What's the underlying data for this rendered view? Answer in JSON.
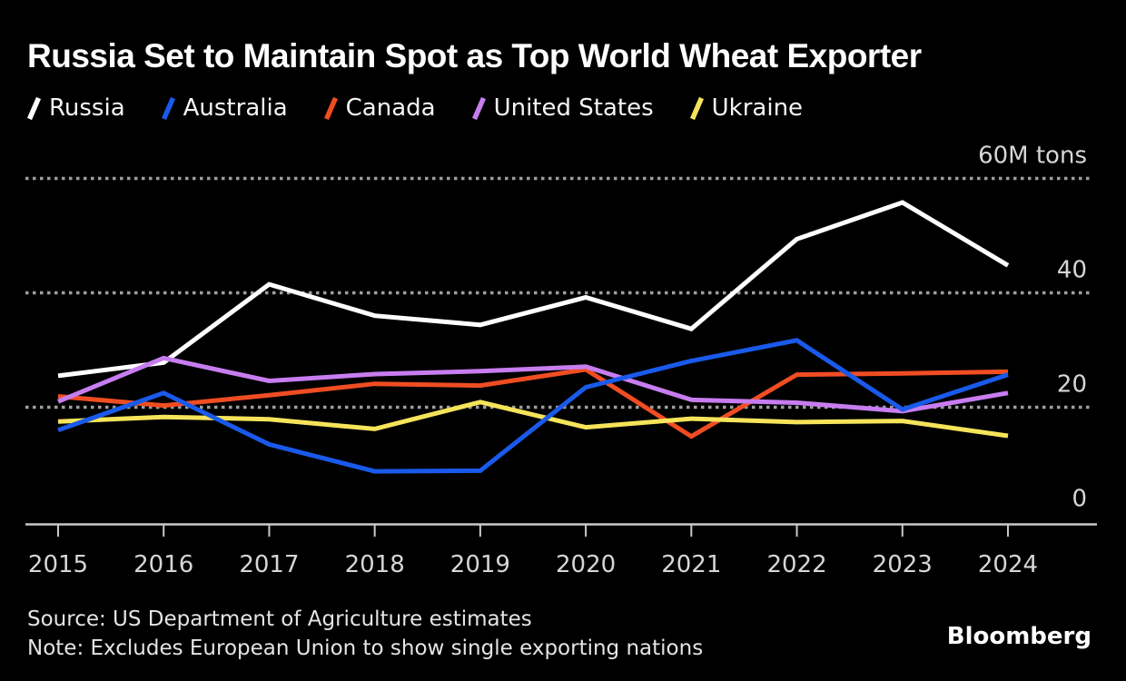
{
  "header": {
    "title": "Russia Set to Maintain Spot as Top World Wheat Exporter"
  },
  "chart_data": {
    "type": "line",
    "title": "Russia Set to Maintain Spot as Top World Wheat Exporter",
    "unit_label": "60M tons",
    "x": [
      "2015",
      "2016",
      "2017",
      "2018",
      "2019",
      "2020",
      "2021",
      "2022",
      "2023",
      "2024"
    ],
    "series": [
      {
        "name": "Russia",
        "color": "#ffffff",
        "values": [
          25.5,
          27.8,
          41.5,
          36.0,
          34.4,
          39.2,
          33.7,
          49.4,
          55.8,
          44.8
        ]
      },
      {
        "name": "Australia",
        "color": "#1a5aeb",
        "values": [
          16.0,
          22.5,
          13.5,
          8.8,
          8.9,
          23.5,
          28.1,
          31.7,
          19.6,
          25.7
        ]
      },
      {
        "name": "Canada",
        "color": "#f04d22",
        "values": [
          21.9,
          20.3,
          22.1,
          24.1,
          23.8,
          26.6,
          14.9,
          25.7,
          25.9,
          26.2
        ]
      },
      {
        "name": "United States",
        "color": "#c77df0",
        "values": [
          21.0,
          28.6,
          24.6,
          25.8,
          26.3,
          27.1,
          21.3,
          20.8,
          19.3,
          22.5
        ]
      },
      {
        "name": "Ukraine",
        "color": "#f5e45a",
        "values": [
          17.5,
          18.3,
          17.9,
          16.2,
          20.9,
          16.5,
          18.0,
          17.4,
          17.6,
          15.0
        ]
      }
    ],
    "draw_order": [
      "Russia",
      "Canada",
      "United States",
      "Ukraine",
      "Australia"
    ],
    "ylim": [
      0,
      60
    ],
    "yticks": [
      0,
      20,
      40,
      60
    ],
    "ytick_labels": [
      "0",
      "20",
      "40",
      "60M tons"
    ],
    "grid": "horizontal dotted at 20, 40, 60",
    "legend_position": "top-left"
  },
  "footer": {
    "source": "Source: US Department of Agriculture estimates",
    "note": "Note: Excludes European Union to show single exporting nations",
    "brand": "Bloomberg"
  }
}
